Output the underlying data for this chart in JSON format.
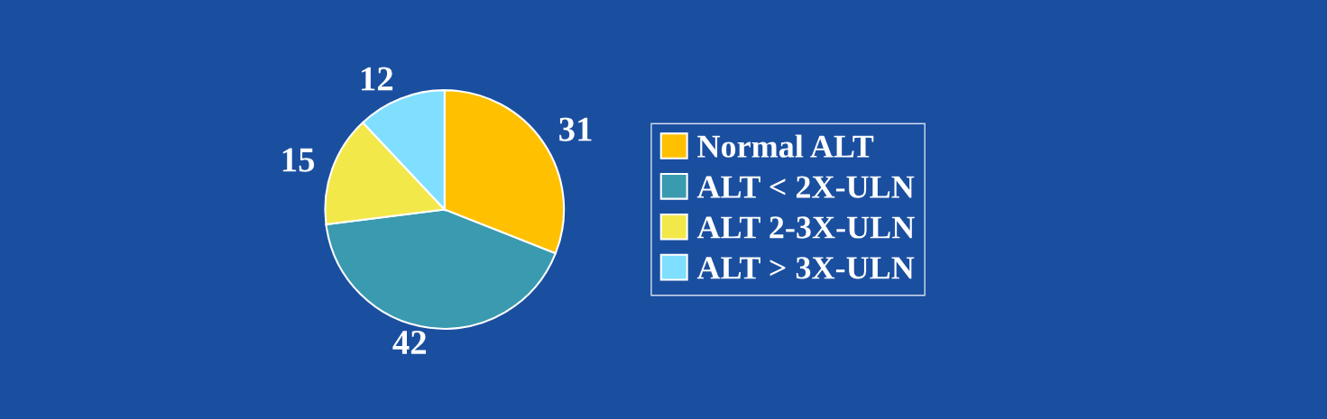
{
  "chart_data": {
    "type": "pie",
    "categories": [
      "Normal ALT",
      "ALT < 2X-ULN",
      "ALT 2-3X-ULN",
      "ALT > 3X-ULN"
    ],
    "values": [
      31,
      42,
      15,
      12
    ],
    "colors": [
      "#ffc000",
      "#3a9aaf",
      "#f2e84a",
      "#80dfff"
    ],
    "data_labels": true,
    "legend": "right"
  }
}
